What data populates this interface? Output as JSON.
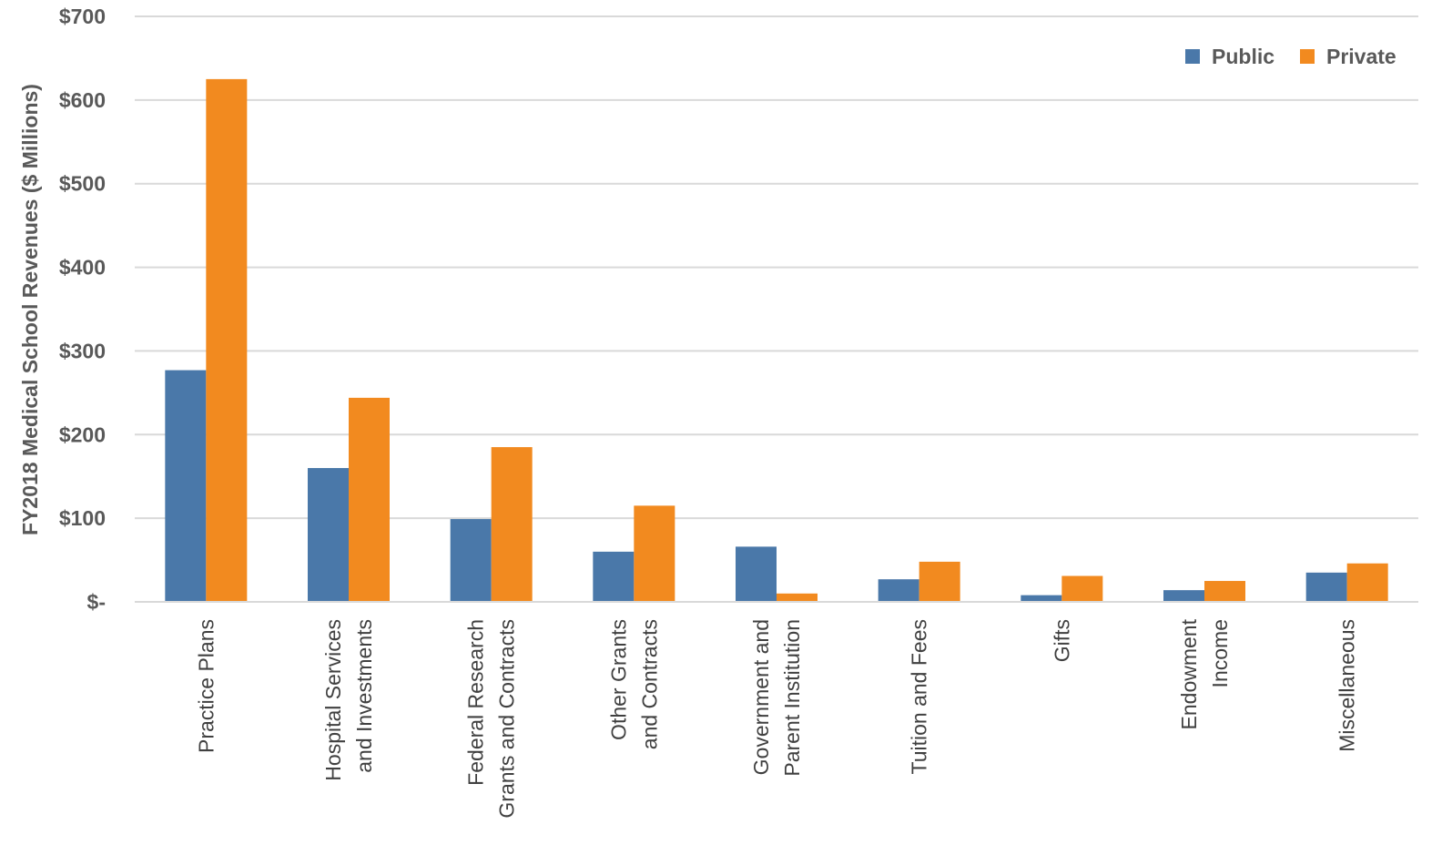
{
  "chart_data": {
    "type": "bar",
    "title": "",
    "xlabel": "",
    "ylabel": "FY2018 Medical School Revenues ($ Millions)",
    "ylim": [
      0,
      700
    ],
    "yticks": [
      0,
      100,
      200,
      300,
      400,
      500,
      600,
      700
    ],
    "ytick_labels": [
      "$-",
      "$100",
      "$200",
      "$300",
      "$400",
      "$500",
      "$600",
      "$700"
    ],
    "grid": true,
    "legend_position": "top-right",
    "categories": [
      [
        "Practice Plans"
      ],
      [
        "Hospital Services",
        "and Investments"
      ],
      [
        "Federal Research",
        "Grants and Contracts"
      ],
      [
        "Other Grants",
        "and Contracts"
      ],
      [
        "Government and",
        "Parent Institution"
      ],
      [
        "Tuition and Fees"
      ],
      [
        "Gifts"
      ],
      [
        "Endowment",
        "Income"
      ],
      [
        "Miscellaneous"
      ]
    ],
    "series": [
      {
        "name": "Public",
        "color": "#4a78a9",
        "values": [
          277,
          160,
          99,
          60,
          66,
          27,
          8,
          14,
          35
        ]
      },
      {
        "name": "Private",
        "color": "#f28a1f",
        "values": [
          625,
          244,
          185,
          115,
          10,
          48,
          31,
          25,
          46
        ]
      }
    ]
  }
}
